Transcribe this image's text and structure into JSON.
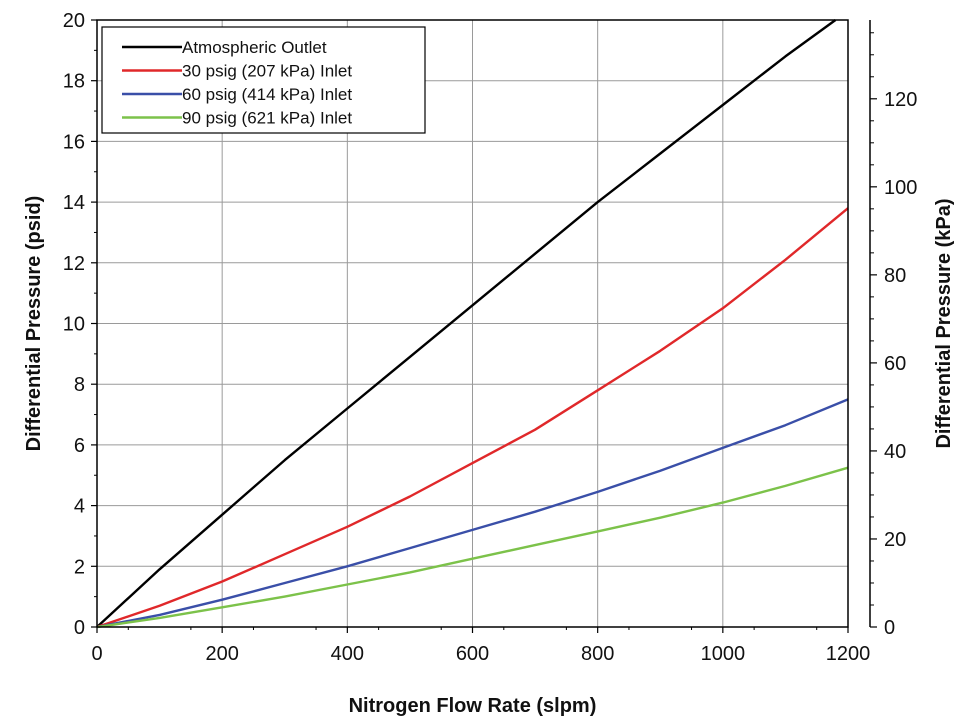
{
  "chart_data": {
    "type": "line",
    "title": "",
    "xlabel": "Nitrogen Flow Rate (slpm)",
    "ylabel": "Differential Pressure (psid)",
    "y2label": "Differential Pressure (kPa)",
    "xlim": [
      0,
      1200
    ],
    "ylim": [
      0,
      20
    ],
    "y2lim": [
      0,
      137.9
    ],
    "x_ticks": [
      0,
      200,
      400,
      600,
      800,
      1000,
      1200
    ],
    "y_ticks": [
      0,
      2,
      4,
      6,
      8,
      10,
      12,
      14,
      16,
      18,
      20
    ],
    "y2_ticks": [
      0,
      20,
      40,
      60,
      80,
      100,
      120
    ],
    "grid": true,
    "legend_position": "top-left",
    "series": [
      {
        "name": "Atmospheric Outlet",
        "color": "#000000",
        "x": [
          0,
          100,
          200,
          300,
          400,
          500,
          600,
          700,
          800,
          900,
          1000,
          1100,
          1180
        ],
        "y": [
          0,
          1.9,
          3.7,
          5.5,
          7.2,
          8.9,
          10.6,
          12.3,
          14.0,
          15.6,
          17.2,
          18.8,
          20.0
        ]
      },
      {
        "name": "30 psig (207 kPa) Inlet",
        "color": "#e0282a",
        "x": [
          0,
          100,
          200,
          300,
          400,
          500,
          600,
          700,
          800,
          900,
          1000,
          1100,
          1200
        ],
        "y": [
          0,
          0.7,
          1.5,
          2.4,
          3.3,
          4.3,
          5.4,
          6.5,
          7.8,
          9.1,
          10.5,
          12.1,
          13.8
        ]
      },
      {
        "name": "60 psig (414 kPa) Inlet",
        "color": "#3a4fa8",
        "x": [
          0,
          100,
          200,
          300,
          400,
          500,
          600,
          700,
          800,
          900,
          1000,
          1100,
          1200
        ],
        "y": [
          0,
          0.4,
          0.9,
          1.45,
          2.0,
          2.6,
          3.2,
          3.8,
          4.45,
          5.15,
          5.9,
          6.65,
          7.5
        ]
      },
      {
        "name": "90 psig (621 kPa) Inlet",
        "color": "#7cc24a",
        "x": [
          0,
          100,
          200,
          300,
          400,
          500,
          600,
          700,
          800,
          900,
          1000,
          1100,
          1200
        ],
        "y": [
          0,
          0.3,
          0.65,
          1.0,
          1.4,
          1.8,
          2.25,
          2.7,
          3.15,
          3.6,
          4.1,
          4.65,
          5.25
        ]
      }
    ]
  }
}
